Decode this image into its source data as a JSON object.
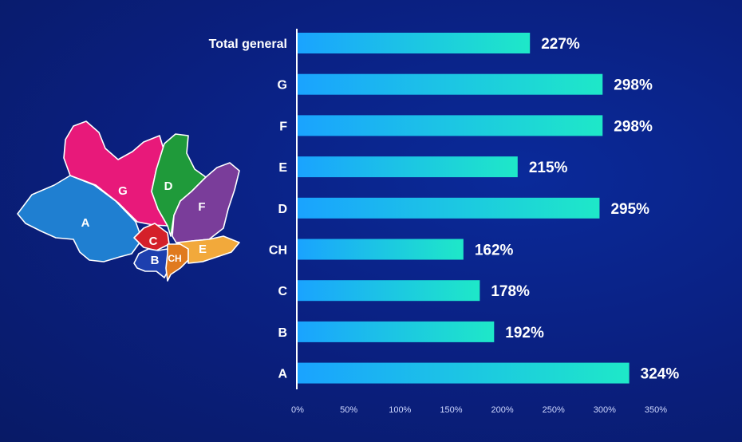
{
  "colors": {
    "background": "#0a1f7e",
    "bar_start": "#1aa3ff",
    "bar_end": "#1ee8c8",
    "axis": "#ffffff"
  },
  "map": {
    "regions": [
      {
        "label": "A",
        "color": "#1f7fd1"
      },
      {
        "label": "G",
        "color": "#e8197a"
      },
      {
        "label": "D",
        "color": "#1f9a3a"
      },
      {
        "label": "F",
        "color": "#7a3d9a"
      },
      {
        "label": "C",
        "color": "#d4202a"
      },
      {
        "label": "B",
        "color": "#1d3fae"
      },
      {
        "label": "CH",
        "color": "#e07a1e"
      },
      {
        "label": "E",
        "color": "#f2a93b"
      }
    ]
  },
  "chart_data": {
    "type": "bar",
    "orientation": "horizontal",
    "categories": [
      "Total general",
      "G",
      "F",
      "E",
      "D",
      "CH",
      "C",
      "B",
      "A"
    ],
    "values": [
      227,
      298,
      298,
      215,
      295,
      162,
      178,
      192,
      324
    ],
    "value_labels": [
      "227%",
      "298%",
      "298%",
      "215%",
      "295%",
      "162%",
      "178%",
      "192%",
      "324%"
    ],
    "xlim": [
      0,
      350
    ],
    "xticks": [
      "0%",
      "50%",
      "100%",
      "150%",
      "200%",
      "250%",
      "300%",
      "350%"
    ],
    "grid": false,
    "legend": "none"
  }
}
